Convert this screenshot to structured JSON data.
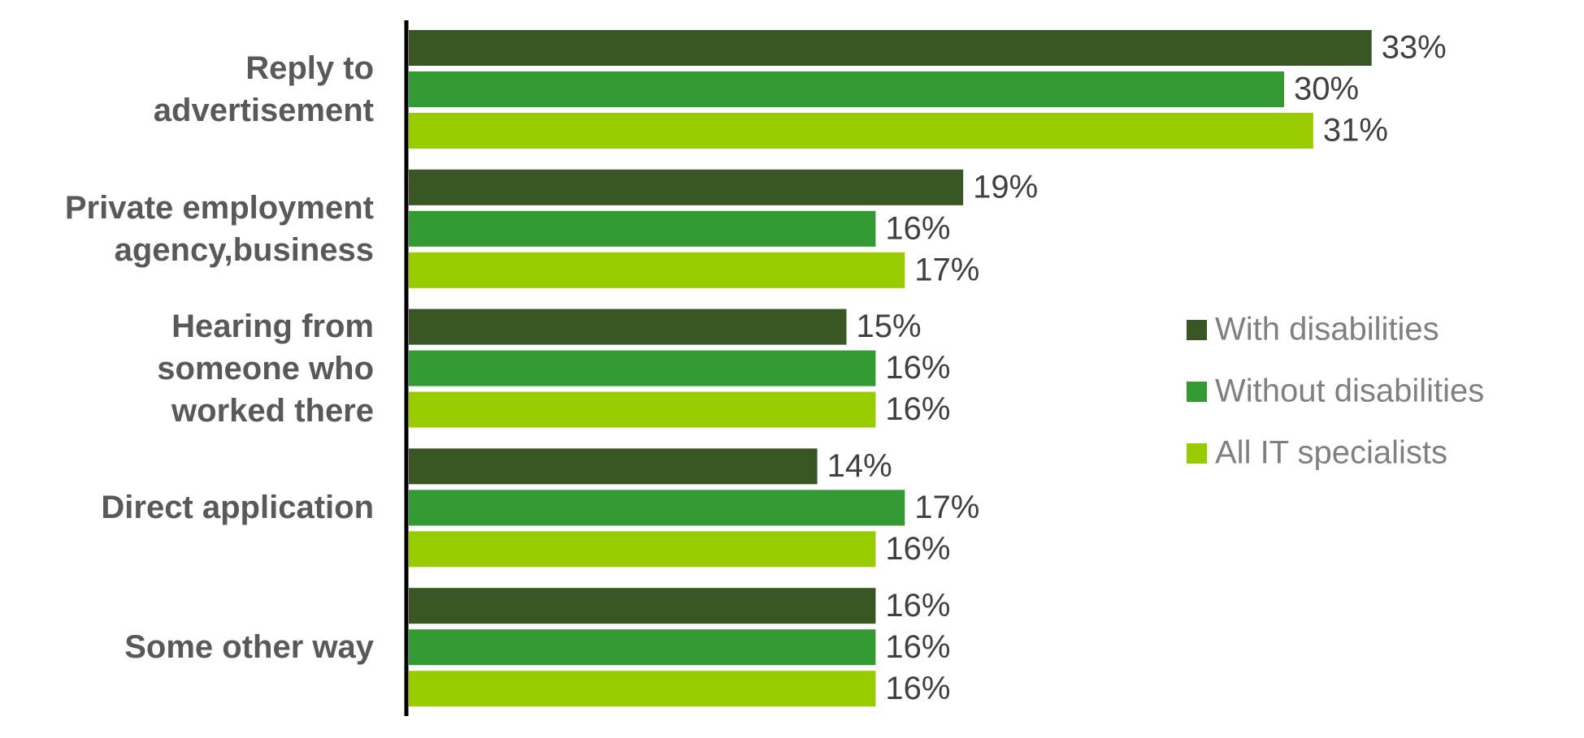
{
  "chart_data": {
    "type": "hbar",
    "categories": [
      "Reply to\nadvertisement",
      "Private employment\nagency,business",
      "Hearing from\nsomeone who\nworked there",
      "Direct application",
      "Some other way"
    ],
    "series": [
      {
        "name": "With disabilities",
        "color": "#375623",
        "values": [
          33,
          19,
          15,
          14,
          16
        ],
        "value_labels": [
          "33%",
          "19%",
          "15%",
          "14%",
          "16%"
        ]
      },
      {
        "name": "Without disabilities",
        "color": "#339933",
        "values": [
          30,
          16,
          16,
          17,
          16
        ],
        "value_labels": [
          "30%",
          "16%",
          "16%",
          "17%",
          "16%"
        ]
      },
      {
        "name": "All IT specialists",
        "color": "#99cc00",
        "values": [
          31,
          17,
          16,
          16,
          16
        ],
        "value_labels": [
          "31%",
          "17%",
          "16%",
          "16%",
          "16%"
        ]
      }
    ],
    "legend": "right"
  }
}
